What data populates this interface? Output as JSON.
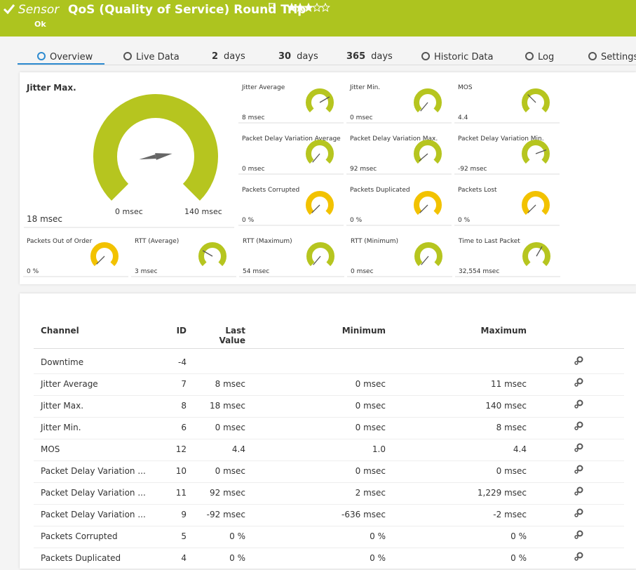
{
  "header": {
    "prefix": "Sensor",
    "title": "QoS (Quality of Service) Round Trip",
    "status": "Ok"
  },
  "tabs": [
    {
      "label": "Overview"
    },
    {
      "label": "Live Data"
    },
    {
      "count": "2",
      "label": "days"
    },
    {
      "count": "30",
      "label": "days"
    },
    {
      "count": "365",
      "label": "days"
    },
    {
      "label": "Historic Data"
    },
    {
      "label": "Log"
    },
    {
      "label": "Settings"
    }
  ],
  "big_gauge": {
    "label": "Jitter Max.",
    "value": "18 msec",
    "min": "0 msec",
    "max": "140 msec",
    "color": "#b6c51f"
  },
  "gauges": [
    {
      "label": "Jitter Average",
      "value": "8 msec",
      "color": "#b6c51f"
    },
    {
      "label": "Jitter Min.",
      "value": "0 msec",
      "color": "#b6c51f"
    },
    {
      "label": "MOS",
      "value": "4.4",
      "color": "#b6c51f"
    },
    {
      "label": "Packet Delay Variation Average",
      "value": "0 msec",
      "color": "#b6c51f"
    },
    {
      "label": "Packet Delay Variation Max.",
      "value": "92 msec",
      "color": "#b6c51f"
    },
    {
      "label": "Packet Delay Variation Min.",
      "value": "-92 msec",
      "color": "#b6c51f"
    },
    {
      "label": "Packets Corrupted",
      "value": "0 %",
      "color": "#f2c200"
    },
    {
      "label": "Packets Duplicated",
      "value": "0 %",
      "color": "#f2c200"
    },
    {
      "label": "Packets Lost",
      "value": "0 %",
      "color": "#f2c200"
    },
    {
      "label": "Packets Out of Order",
      "value": "0 %",
      "color": "#f2c200"
    },
    {
      "label": "RTT (Average)",
      "value": "3 msec",
      "color": "#b6c51f"
    },
    {
      "label": "RTT (Maximum)",
      "value": "54 msec",
      "color": "#b6c51f"
    },
    {
      "label": "RTT (Minimum)",
      "value": "0 msec",
      "color": "#b6c51f"
    },
    {
      "label": "Time to Last Packet",
      "value": "32,554 msec",
      "color": "#b6c51f"
    }
  ],
  "table": {
    "columns": {
      "channel": "Channel",
      "id": "ID",
      "last": "Last Value",
      "min": "Minimum",
      "max": "Maximum"
    },
    "rows": [
      {
        "channel": "Downtime",
        "id": "-4"
      },
      {
        "channel": "Jitter Average",
        "id": "7",
        "last": "8 msec",
        "min": "0 msec",
        "max": "11 msec"
      },
      {
        "channel": "Jitter Max.",
        "id": "8",
        "last": "18 msec",
        "min": "0 msec",
        "max": "140 msec"
      },
      {
        "channel": "Jitter Min.",
        "id": "6",
        "last": "0 msec",
        "min": "0 msec",
        "max": "8 msec"
      },
      {
        "channel": "MOS",
        "id": "12",
        "last": "4.4",
        "min": "1.0",
        "max": "4.4"
      },
      {
        "channel": "Packet Delay Variation ...",
        "id": "10",
        "last": "0 msec",
        "min": "0 msec",
        "max": "0 msec"
      },
      {
        "channel": "Packet Delay Variation ...",
        "id": "11",
        "last": "92 msec",
        "min": "2 msec",
        "max": "1,229 msec"
      },
      {
        "channel": "Packet Delay Variation ...",
        "id": "9",
        "last": "-92 msec",
        "min": "-636 msec",
        "max": "-2 msec"
      },
      {
        "channel": "Packets Corrupted",
        "id": "5",
        "last": "0 %",
        "min": "0 %",
        "max": "0 %"
      },
      {
        "channel": "Packets Duplicated",
        "id": "4",
        "last": "0 %",
        "min": "0 %",
        "max": "0 %"
      }
    ]
  }
}
